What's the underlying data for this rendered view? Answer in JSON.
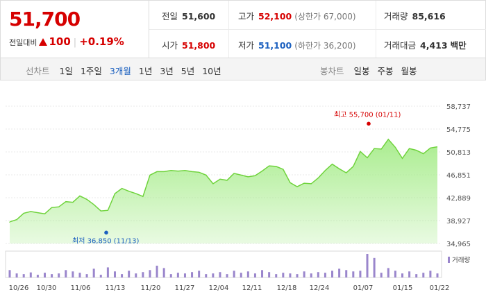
{
  "quote": {
    "price": "51,700",
    "change_label": "전일대비",
    "change": "100",
    "change_pct": "+0.19%"
  },
  "stats": {
    "prev": {
      "label": "전일",
      "value": "51,600"
    },
    "high": {
      "label": "고가",
      "value": "52,100",
      "sub": "(상한가 67,000)"
    },
    "volume": {
      "label": "거래량",
      "value": "85,616"
    },
    "open": {
      "label": "시가",
      "value": "51,800"
    },
    "low": {
      "label": "저가",
      "value": "51,100",
      "sub": "(하한가 36,200)"
    },
    "amount": {
      "label": "거래대금",
      "value": "4,413",
      "unit": "백만"
    }
  },
  "line_tabs": {
    "title": "선차트",
    "items": [
      "1일",
      "1주일",
      "3개월",
      "1년",
      "3년",
      "5년",
      "10년"
    ],
    "active": "3개월"
  },
  "candle_tabs": {
    "title": "봉차트",
    "items": [
      "일봉",
      "주봉",
      "월봉"
    ]
  },
  "colors": {
    "up": "#d60000",
    "down": "#1a5fbf",
    "area_fill": "#a6ec8a",
    "line": "#6fd33c",
    "volume": "#9a86cc"
  },
  "chart_data": {
    "type": "area",
    "y_ticks": [
      "58,737",
      "54,775",
      "50,813",
      "46,851",
      "42,889",
      "38,927",
      "34,965"
    ],
    "ylim": [
      34965,
      58737
    ],
    "x_ticks": [
      "10/26",
      "10/30",
      "11/06",
      "11/13",
      "11/20",
      "11/27",
      "12/04",
      "12/11",
      "12/18",
      "12/24",
      "01/07",
      "01/15",
      "01/22"
    ],
    "values": [
      38700,
      39100,
      40200,
      40500,
      40300,
      40100,
      41200,
      41300,
      42200,
      42100,
      43200,
      42600,
      41700,
      40600,
      40700,
      43600,
      44500,
      44000,
      43600,
      43100,
      46800,
      47400,
      47400,
      47600,
      47500,
      47600,
      47400,
      47300,
      46800,
      45300,
      46100,
      45900,
      47100,
      46800,
      46500,
      46700,
      47500,
      48400,
      48300,
      47800,
      45500,
      44800,
      45400,
      45300,
      46300,
      47600,
      48700,
      47900,
      47200,
      48300,
      50900,
      49800,
      51400,
      51300,
      53000,
      51600,
      49700,
      51400,
      51100,
      50500,
      51500,
      51700
    ],
    "volume": [
      22,
      12,
      10,
      15,
      8,
      14,
      10,
      12,
      22,
      18,
      14,
      10,
      26,
      8,
      30,
      18,
      10,
      20,
      12,
      16,
      22,
      35,
      28,
      10,
      14,
      12,
      16,
      20,
      10,
      12,
      16,
      10,
      20,
      14,
      18,
      12,
      22,
      16,
      10,
      14,
      12,
      10,
      18,
      12,
      16,
      14,
      20,
      26,
      22,
      18,
      20,
      70,
      58,
      14,
      28,
      20,
      12,
      18,
      10,
      14,
      20,
      12
    ],
    "max_label": "최고 55,700 (01/11)",
    "min_label": "최저 36,850 (11/13)",
    "max_value": 55700,
    "min_value": 36850,
    "volume_legend": "거래량"
  }
}
